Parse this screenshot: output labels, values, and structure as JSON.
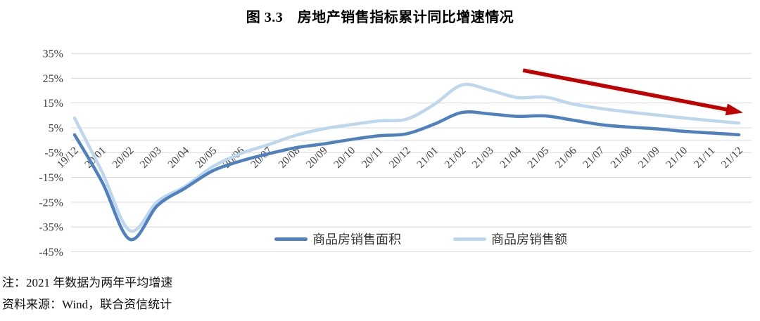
{
  "title": "图 3.3　房地产销售指标累计同比增速情况",
  "chart_data": {
    "type": "line",
    "smooth": true,
    "grid": "horizontal",
    "legend_position": "bottom",
    "categories": [
      "19/12",
      "20/01",
      "20/02",
      "20/03",
      "20/04",
      "20/05",
      "20/06",
      "20/07",
      "20/08",
      "20/09",
      "20/10",
      "20/11",
      "20/12",
      "21/01",
      "21/02",
      "21/03",
      "21/04",
      "21/05",
      "21/06",
      "21/07",
      "21/08",
      "21/09",
      "21/10",
      "21/11",
      "21/12"
    ],
    "series": [
      {
        "name": "商品房销售面积",
        "color": "#4E81BD",
        "values": [
          2.2,
          -17.0,
          -40.0,
          -26.3,
          -19.3,
          -12.3,
          -8.4,
          -5.5,
          -3.0,
          -1.5,
          0.3,
          1.8,
          2.6,
          6.5,
          11.2,
          10.6,
          9.6,
          9.8,
          8.1,
          6.3,
          5.3,
          4.6,
          3.6,
          2.9,
          2.2
        ]
      },
      {
        "name": "商品房销售额",
        "color": "#BDD7EE",
        "values": [
          8.9,
          -13.0,
          -36.5,
          -24.7,
          -18.6,
          -10.6,
          -5.4,
          -1.8,
          2.0,
          4.6,
          6.3,
          7.8,
          8.5,
          14.5,
          22.3,
          20.2,
          17.2,
          17.4,
          14.6,
          12.8,
          11.4,
          10.2,
          9.0,
          7.9,
          6.9
        ]
      }
    ],
    "unit": "%",
    "ylim": [
      -45,
      35
    ],
    "y_ticks": [
      35,
      25,
      15,
      5,
      -5,
      -15,
      -25,
      -35,
      -45
    ],
    "y_tick_suffix": "%",
    "xlabel": "",
    "ylabel": "",
    "annotation": {
      "type": "trend-arrow",
      "color": "#C00000",
      "from": {
        "category_index": 16.2,
        "value": 28.2
      },
      "to": {
        "category_index": 24.15,
        "value": 11.1
      }
    },
    "gridline_color": "#D8D8D8",
    "axis_text_color": "#3F3F3F"
  },
  "notes": {
    "note1": "注：2021 年数据为两年平均增速",
    "note2": "资料来源：Wind，联合资信统计"
  }
}
